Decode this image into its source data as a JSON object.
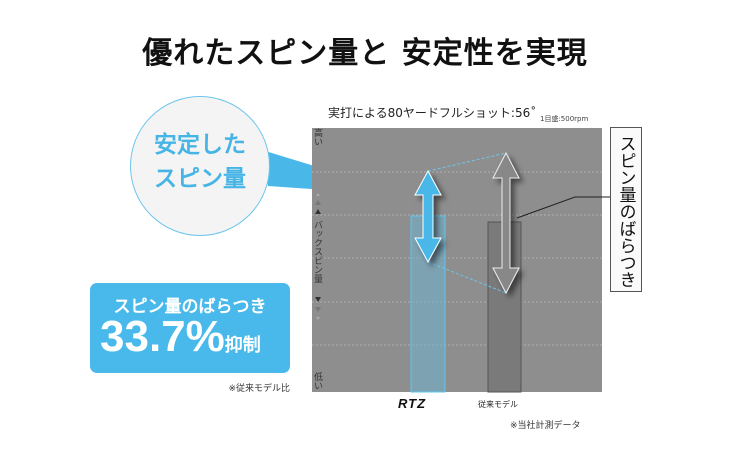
{
  "title": "優れたスピン量と 安定性を実現",
  "callout": {
    "line1": "安定した",
    "line2": "スピン量"
  },
  "highlight": {
    "label": "スピン量のばらつき",
    "value": "33.7%",
    "suffix": "抑制",
    "note": "※従来モデル比"
  },
  "chart": {
    "title": "実打による80ヤードフルショット:56˚",
    "scale": "1目盛:500rpm",
    "y_high": "高い",
    "y_low": "低い",
    "y_axis": "バックスピン量",
    "categories": [
      "RTZ",
      "従来モデル"
    ],
    "range_label": "スピン量のばらつき",
    "source": "※当社計測データ",
    "colors": {
      "rtz": "#49b8e9",
      "old": "#7a7a7a",
      "plot": "#8e8e8e"
    }
  }
}
